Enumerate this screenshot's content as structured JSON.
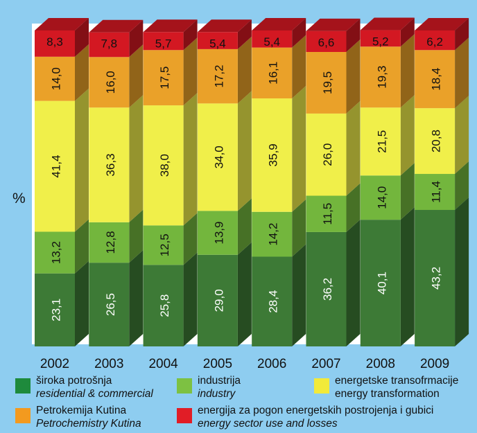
{
  "chart_data": {
    "type": "bar",
    "stacked": true,
    "ylabel": "%",
    "ylim": [
      0,
      100
    ],
    "categories": [
      "2002",
      "2003",
      "2004",
      "2005",
      "2006",
      "2007",
      "2008",
      "2009"
    ],
    "series": [
      {
        "name": "široka potrošnja",
        "name_en": "residential & commercial",
        "color": "#3d7a36",
        "values": [
          23.1,
          26.5,
          25.8,
          29.0,
          28.4,
          36.2,
          40.1,
          43.2
        ],
        "labels": [
          "23,1",
          "26,5",
          "25,8",
          "29,0",
          "28,4",
          "36,2",
          "40,1",
          "43,2"
        ]
      },
      {
        "name": "industrija",
        "name_en": "industry",
        "color": "#73b63d",
        "values": [
          13.2,
          12.8,
          12.5,
          13.9,
          14.2,
          11.5,
          14.0,
          11.4
        ],
        "labels": [
          "13,2",
          "12,8",
          "12,5",
          "13,9",
          "14,2",
          "11,5",
          "14,0",
          "11,4"
        ]
      },
      {
        "name": "energetske transofrmacije",
        "name_en": "energy transformation",
        "color": "#f0ef4a",
        "values": [
          41.4,
          36.3,
          38.0,
          34.0,
          35.9,
          26.0,
          21.5,
          20.8
        ],
        "labels": [
          "41,4",
          "36,3",
          "38,0",
          "34,0",
          "35,9",
          "26,0",
          "21,5",
          "20,8"
        ]
      },
      {
        "name": "Petrokemija Kutina",
        "name_en": "Petrochemistry Kutina",
        "color": "#eaa129",
        "values": [
          14.0,
          16.0,
          17.5,
          17.2,
          16.1,
          19.5,
          19.3,
          18.4
        ],
        "labels": [
          "14,0",
          "16,0",
          "17,5",
          "17,2",
          "16,1",
          "19,5",
          "19,3",
          "18,4"
        ]
      },
      {
        "name": "energija za pogon energetskih postrojenja i gubici",
        "name_en": "energy sector use and losses",
        "color": "#d31822",
        "values": [
          8.3,
          7.8,
          5.7,
          5.4,
          5.4,
          6.6,
          5.2,
          6.2
        ],
        "labels": [
          "8,3",
          "7,8",
          "5,7",
          "5,4",
          "5,4",
          "6,6",
          "5,2",
          "6,2"
        ]
      }
    ],
    "legend": {
      "placement": "bottom",
      "items": [
        {
          "name": "široka potrošnja",
          "name_en": "residential & commercial",
          "color": "#1e8a3c"
        },
        {
          "name": "industrija",
          "name_en": "industry",
          "color": "#7dc142"
        },
        {
          "name": "energetske transofrmacije",
          "name_en": "energy transformation",
          "color": "#f2ea3a"
        },
        {
          "name": "Petrokemija Kutina",
          "name_en": "Petrochemistry Kutina",
          "color": "#f39a1f"
        },
        {
          "name": "energija za pogon energetskih postrojenja i gubici",
          "name_en": "energy sector use and losses",
          "color": "#e11d26"
        }
      ]
    }
  }
}
